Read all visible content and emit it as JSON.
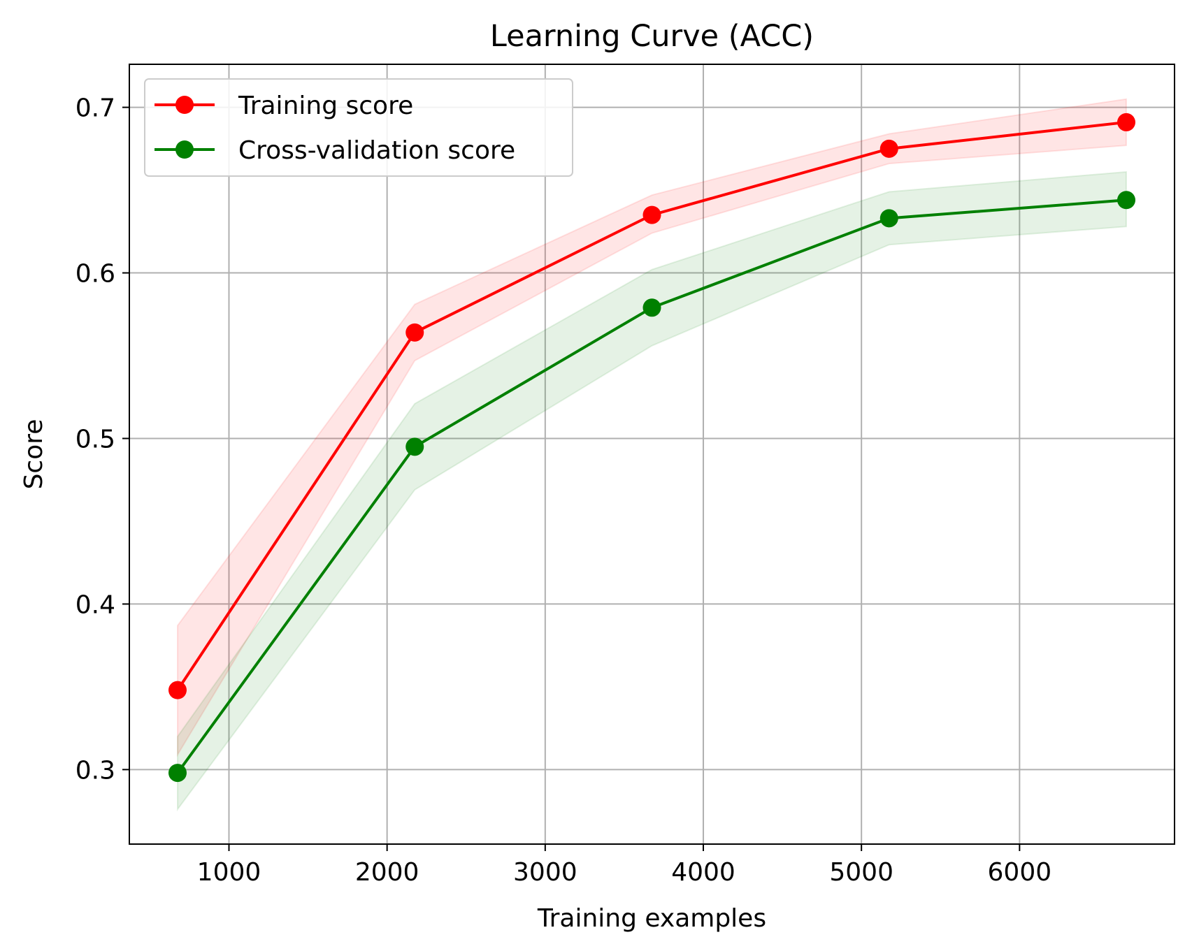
{
  "chart_data": {
    "type": "line",
    "title": "Learning Curve (ACC)",
    "xlabel": "Training examples",
    "ylabel": "Score",
    "xlim": [
      370,
      6980
    ],
    "ylim": [
      0.255,
      0.726
    ],
    "x_ticks": [
      1000,
      2000,
      3000,
      4000,
      5000,
      6000
    ],
    "x_tick_labels": [
      "1000",
      "2000",
      "3000",
      "4000",
      "5000",
      "6000"
    ],
    "y_ticks": [
      0.3,
      0.4,
      0.5,
      0.6,
      0.7
    ],
    "y_tick_labels": [
      "0.3",
      "0.4",
      "0.5",
      "0.6",
      "0.7"
    ],
    "grid": true,
    "legend_position": "top-left",
    "x": [
      675,
      2175,
      3675,
      5175,
      6675
    ],
    "series": [
      {
        "name": "Training score",
        "color": "#ff0000",
        "marker": "circle",
        "values": [
          0.348,
          0.564,
          0.635,
          0.675,
          0.691
        ],
        "band_lower": [
          0.309,
          0.547,
          0.624,
          0.666,
          0.677
        ],
        "band_upper": [
          0.387,
          0.581,
          0.647,
          0.684,
          0.705
        ]
      },
      {
        "name": "Cross-validation score",
        "color": "#008000",
        "marker": "circle",
        "values": [
          0.298,
          0.495,
          0.579,
          0.633,
          0.644
        ],
        "band_lower": [
          0.276,
          0.469,
          0.556,
          0.617,
          0.628
        ],
        "band_upper": [
          0.32,
          0.521,
          0.602,
          0.649,
          0.661
        ]
      }
    ]
  }
}
